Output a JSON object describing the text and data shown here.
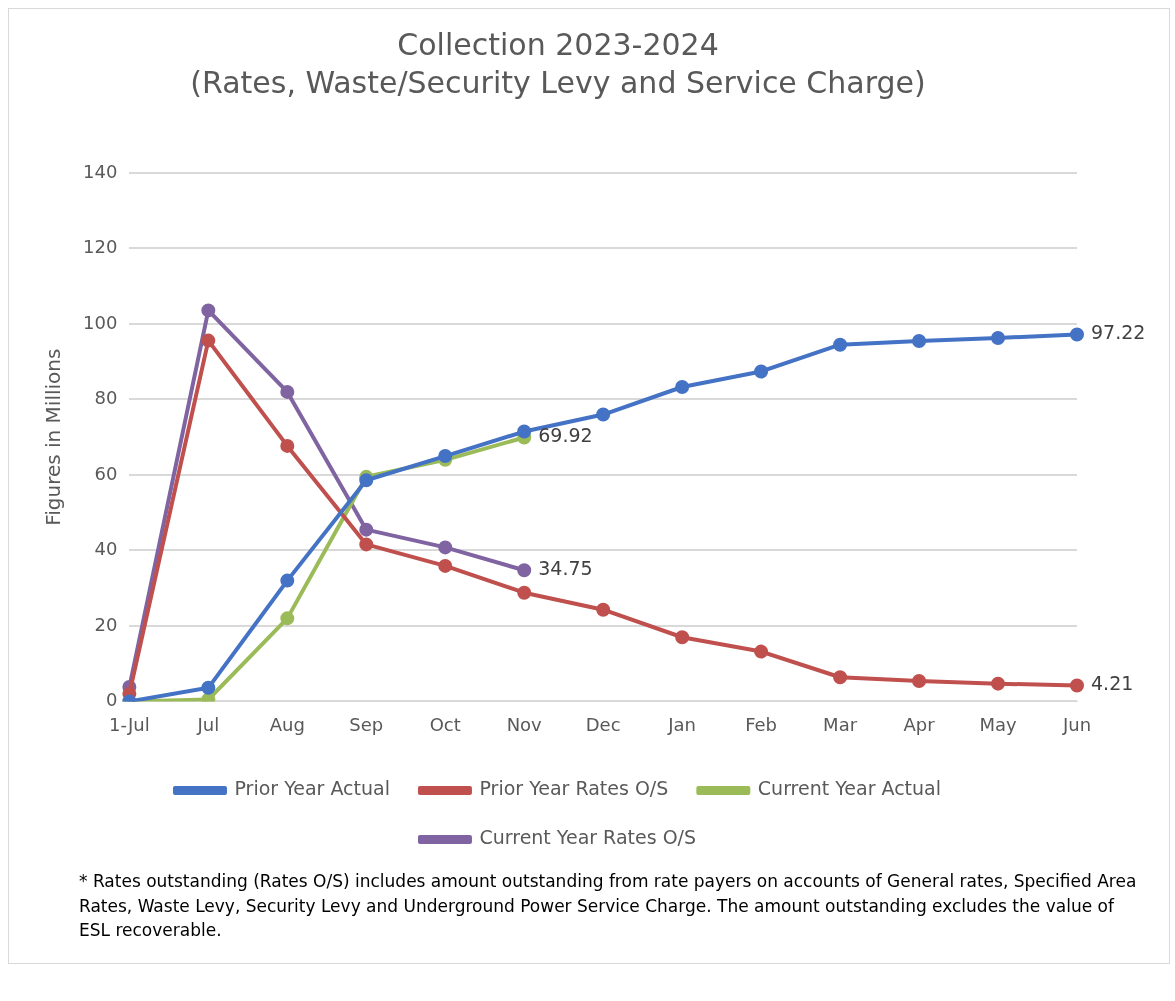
{
  "chart_data": {
    "type": "line",
    "title": "Collection 2023-2024",
    "subtitle": "(Rates, Waste/Security Levy and Service Charge)",
    "ylabel": "Figures in Millions",
    "categories": [
      "1-Jul",
      "Jul",
      "Aug",
      "Sep",
      "Oct",
      "Nov",
      "Dec",
      "Jan",
      "Feb",
      "Mar",
      "Apr",
      "May",
      "Jun"
    ],
    "series": [
      {
        "name": "Prior Year Actual",
        "color": "#4472c4",
        "values": [
          0,
          3.6,
          32,
          58.6,
          65,
          71.5,
          76,
          83.3,
          87.4,
          94.5,
          95.5,
          96.3,
          97.22
        ],
        "value_labels": [
          null,
          null,
          null,
          null,
          null,
          null,
          null,
          null,
          null,
          null,
          null,
          null,
          "97.22"
        ]
      },
      {
        "name": "Prior Year Rates O/S",
        "color": "#c0504d",
        "values": [
          2,
          95.6,
          67.7,
          41.6,
          35.9,
          28.8,
          24.3,
          17,
          13.2,
          6.4,
          5.4,
          4.7,
          4.21
        ],
        "value_labels": [
          null,
          null,
          null,
          null,
          null,
          null,
          null,
          null,
          null,
          null,
          null,
          null,
          "4.21"
        ]
      },
      {
        "name": "Current Year Actual",
        "color": "#9bbb59",
        "values": [
          0,
          0.5,
          22,
          59.5,
          64,
          69.92,
          null,
          null,
          null,
          null,
          null,
          null,
          null
        ],
        "value_labels": [
          null,
          null,
          null,
          null,
          null,
          "69.92",
          null,
          null,
          null,
          null,
          null,
          null,
          null
        ]
      },
      {
        "name": "Current Year Rates O/S",
        "color": "#8064a2",
        "values": [
          3.8,
          103.6,
          82,
          45.5,
          40.8,
          34.75,
          null,
          null,
          null,
          null,
          null,
          null,
          null
        ],
        "value_labels": [
          null,
          null,
          null,
          null,
          null,
          "34.75",
          null,
          null,
          null,
          null,
          null,
          null,
          null
        ]
      }
    ],
    "ylim": [
      0,
      140
    ],
    "yticks": [
      0,
      20,
      40,
      60,
      80,
      100,
      120,
      140
    ],
    "grid": "y",
    "legend": "bottom",
    "marker": "circle",
    "line_style": "solid",
    "annotations": [
      "* Rates outstanding (Rates O/S) includes amount outstanding from rate payers on accounts of General rates, Specified Area Rates, Waste Levy, Security Levy and Underground Power Service Charge. The amount outstanding excludes the value of ESL recoverable."
    ]
  }
}
